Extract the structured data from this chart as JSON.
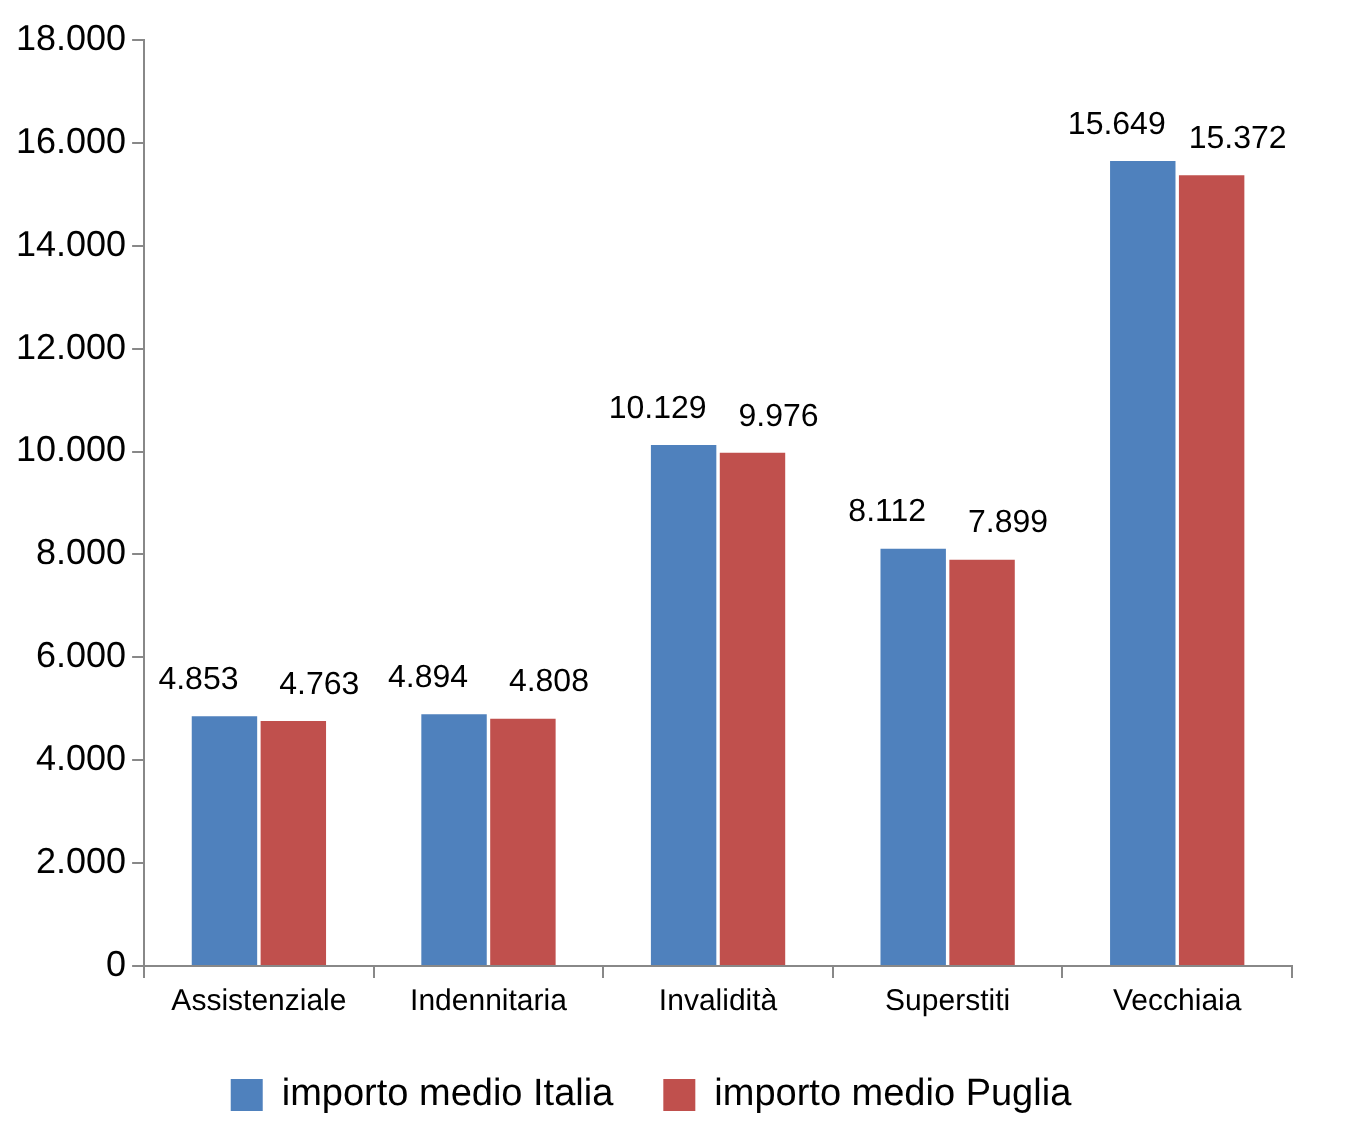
{
  "chart_data": {
    "type": "bar",
    "categories": [
      "Assistenziale",
      "Indennitaria",
      "Invalidità",
      "Superstiti",
      "Vecchiaia"
    ],
    "series": [
      {
        "name": "importo medio Italia",
        "color": "#4f81bd",
        "values": [
          4853,
          4894,
          10129,
          8112,
          15649
        ],
        "value_labels": [
          "4.853",
          "4.894",
          "10.129",
          "8.112",
          "15.649"
        ]
      },
      {
        "name": "importo medio Puglia",
        "color": "#c0504d",
        "values": [
          4763,
          4808,
          9976,
          7899,
          15372
        ],
        "value_labels": [
          "4.763",
          "4.808",
          "9.976",
          "7.899",
          "15.372"
        ]
      }
    ],
    "ylim": [
      0,
      18000
    ],
    "yticks": [
      {
        "value": 0,
        "label": "0"
      },
      {
        "value": 2000,
        "label": "2.000"
      },
      {
        "value": 4000,
        "label": "4.000"
      },
      {
        "value": 6000,
        "label": "6.000"
      },
      {
        "value": 8000,
        "label": "8.000"
      },
      {
        "value": 10000,
        "label": "10.000"
      },
      {
        "value": 12000,
        "label": "12.000"
      },
      {
        "value": 14000,
        "label": "14.000"
      },
      {
        "value": 16000,
        "label": "16.000"
      },
      {
        "value": 18000,
        "label": "18.000"
      }
    ],
    "grid": false,
    "legend": "bottom"
  }
}
